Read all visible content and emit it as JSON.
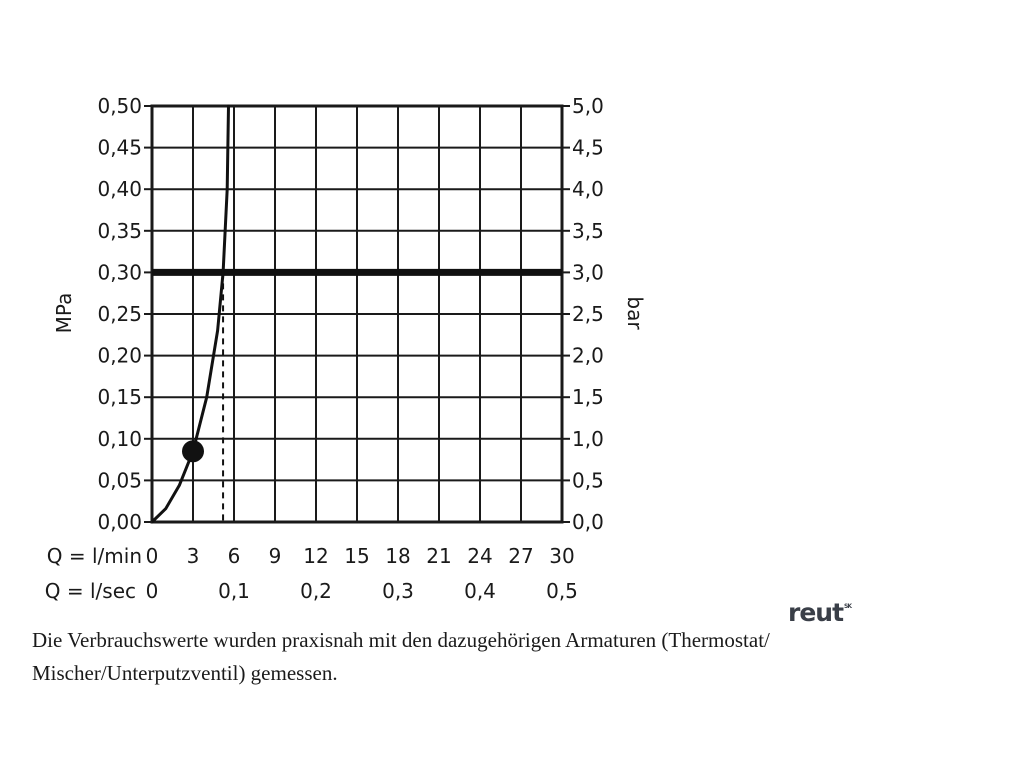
{
  "chart_data": {
    "type": "line",
    "ylabel_left": "MPa",
    "ylabel_right": "bar",
    "y_left_ticks": [
      "0,00",
      "0,05",
      "0,10",
      "0,15",
      "0,20",
      "0,25",
      "0,30",
      "0,35",
      "0,40",
      "0,45",
      "0,50"
    ],
    "y_right_ticks": [
      "0,0",
      "0,5",
      "1,0",
      "1,5",
      "2,0",
      "2,5",
      "3,0",
      "3,5",
      "4,0",
      "4,5",
      "5,0"
    ],
    "ylim": [
      0,
      0.5
    ],
    "xlim": [
      0,
      30
    ],
    "x_axis_primary": {
      "label": "Q = l/min",
      "ticks": [
        "0",
        "3",
        "6",
        "9",
        "12",
        "15",
        "18",
        "21",
        "24",
        "27",
        "30"
      ]
    },
    "x_axis_secondary": {
      "label": "Q = l/sec",
      "ticks": [
        "0",
        "0,1",
        "0,2",
        "0,3",
        "0,4",
        "0,5"
      ]
    },
    "grid": true,
    "series": [
      {
        "x": [
          0,
          1,
          2,
          3,
          4,
          4.8,
          5.2,
          5.5,
          5.6
        ],
        "y": [
          0,
          0.016,
          0.044,
          0.085,
          0.15,
          0.23,
          0.3,
          0.4,
          0.5
        ]
      }
    ],
    "reference_line": {
      "y": 0.3
    },
    "marker": {
      "x": 3,
      "y": 0.085
    },
    "dashed_drop": {
      "x": 5.2,
      "from_y": 0.3,
      "to_y": 0
    }
  },
  "caption": {
    "line1": "Die Verbrauchswerte wurden praxisnah mit den dazugehörigen Armaturen (Thermostat/",
    "line2": "Mischer/Unterputzventil) gemessen."
  },
  "logo": {
    "text": "reut",
    "superscript": "SK"
  }
}
